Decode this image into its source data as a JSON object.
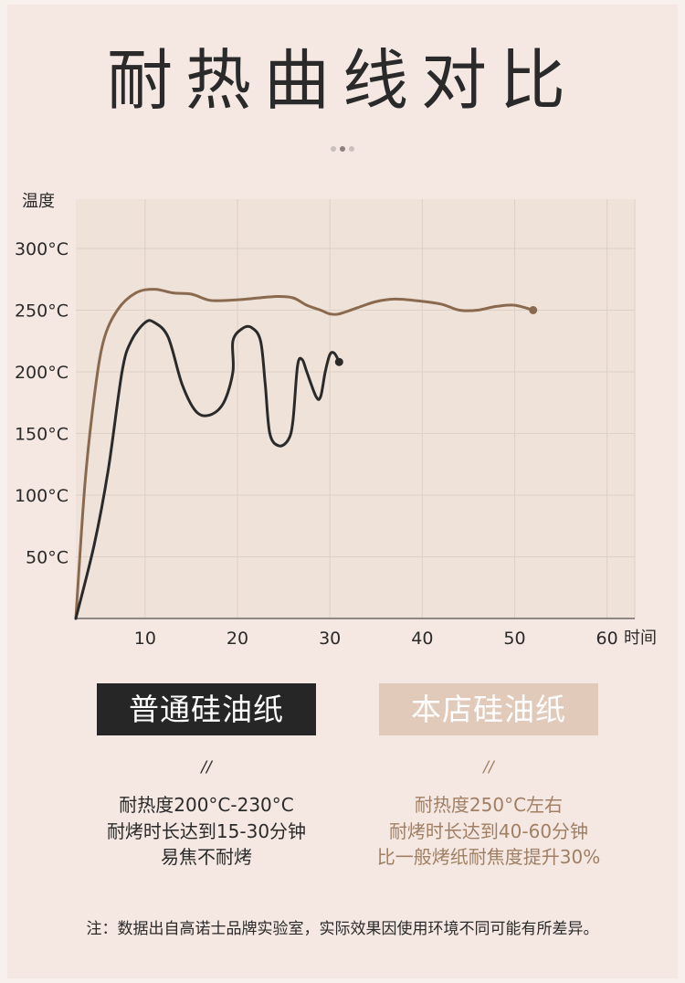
{
  "page": {
    "title": "耐热曲线对比",
    "footnote": "注：数据出自高诺士品牌实验室，实际效果因使用环境不同可能有所差异。"
  },
  "chart_data": {
    "type": "line",
    "ylabel": "温度",
    "xlabel": "时间",
    "xlim": [
      2.5,
      63
    ],
    "ylim": [
      0,
      340
    ],
    "x_ticks": [
      {
        "value": 10,
        "label": "10"
      },
      {
        "value": 20,
        "label": "20"
      },
      {
        "value": 30,
        "label": "30"
      },
      {
        "value": 40,
        "label": "40"
      },
      {
        "value": 50,
        "label": "50"
      },
      {
        "value": 60,
        "label": "60"
      }
    ],
    "y_ticks": [
      {
        "value": 50,
        "label": "50°C"
      },
      {
        "value": 100,
        "label": "100°C"
      },
      {
        "value": 150,
        "label": "150°C"
      },
      {
        "value": 200,
        "label": "200°C"
      },
      {
        "value": 250,
        "label": "250°C"
      },
      {
        "value": 300,
        "label": "300°C"
      }
    ],
    "series": [
      {
        "key": "ours",
        "color": "#8a6a4f",
        "end_marker": true,
        "points": [
          [
            2.5,
            0
          ],
          [
            3.5,
            110
          ],
          [
            4.5,
            180
          ],
          [
            5.5,
            225
          ],
          [
            7,
            250
          ],
          [
            9,
            264
          ],
          [
            11,
            267
          ],
          [
            13,
            264
          ],
          [
            15,
            263
          ],
          [
            17,
            258
          ],
          [
            19,
            258
          ],
          [
            21,
            259
          ],
          [
            24,
            261
          ],
          [
            26,
            260
          ],
          [
            27.5,
            254
          ],
          [
            29,
            250
          ],
          [
            30,
            247
          ],
          [
            31,
            247
          ],
          [
            33,
            252
          ],
          [
            35,
            257
          ],
          [
            37,
            259
          ],
          [
            39,
            258
          ],
          [
            42,
            255
          ],
          [
            44,
            250
          ],
          [
            46,
            250
          ],
          [
            48,
            253
          ],
          [
            50,
            254
          ],
          [
            52,
            250
          ]
        ]
      },
      {
        "key": "normal",
        "color": "#2a2a2a",
        "end_marker": true,
        "points": [
          [
            2.5,
            0
          ],
          [
            4.5,
            60
          ],
          [
            6,
            120
          ],
          [
            7.5,
            200
          ],
          [
            8.5,
            225
          ],
          [
            10,
            240
          ],
          [
            11,
            240
          ],
          [
            12.5,
            228
          ],
          [
            14,
            190
          ],
          [
            15.5,
            168
          ],
          [
            17,
            165
          ],
          [
            18.5,
            175
          ],
          [
            19.5,
            200
          ],
          [
            19.5,
            225
          ],
          [
            20.5,
            235
          ],
          [
            21.5,
            236
          ],
          [
            22.5,
            225
          ],
          [
            23,
            190
          ],
          [
            23.5,
            150
          ],
          [
            24.5,
            140
          ],
          [
            25.5,
            145
          ],
          [
            26,
            160
          ],
          [
            26.5,
            205
          ],
          [
            27,
            210
          ],
          [
            27.5,
            200
          ],
          [
            28.5,
            180
          ],
          [
            29,
            180
          ],
          [
            29.5,
            200
          ],
          [
            30,
            214
          ],
          [
            30.5,
            215
          ],
          [
            31,
            208
          ]
        ]
      }
    ],
    "grid": true
  },
  "comparison": {
    "left": {
      "name": "普通硅油纸",
      "separator": "//",
      "lines": [
        "耐热度200°C-230°C",
        "耐烤时长达到15-30分钟",
        "易焦不耐烤"
      ]
    },
    "right": {
      "name": "本店硅油纸",
      "separator": "//",
      "lines": [
        "耐热度250°C左右",
        "耐烤时长达到40-60分钟",
        "比一般烤纸耐焦度提升30%"
      ]
    }
  },
  "colors": {
    "background": "#f5e8e2",
    "chart_bg": "#efe2d9",
    "accent": "#a07f64",
    "dark": "#262626"
  }
}
